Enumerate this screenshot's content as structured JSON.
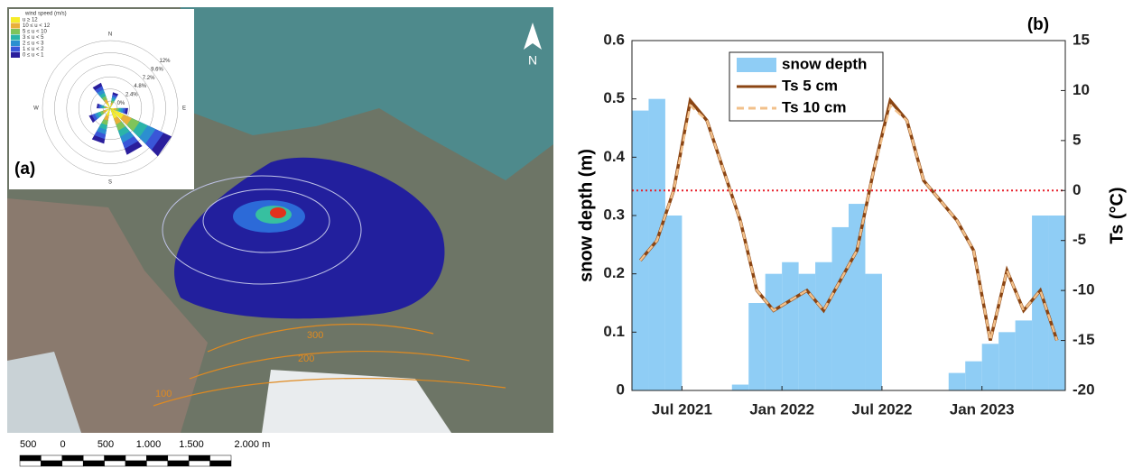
{
  "map_panel": {
    "panel_label": "(a)",
    "north": "N",
    "rose_title": "wind speed (m/s)",
    "rose_classes": [
      {
        "label": "u ≥ 12",
        "color": "#f6ec2a"
      },
      {
        "label": "10 ≤ u < 12",
        "color": "#e9b03a"
      },
      {
        "label": "5 ≤ u < 10",
        "color": "#7fc45a"
      },
      {
        "label": "3 ≤ u < 5",
        "color": "#2bb4a8"
      },
      {
        "label": "2 ≤ u < 3",
        "color": "#2c8fd0"
      },
      {
        "label": "1 ≤ u < 2",
        "color": "#3a56d8"
      },
      {
        "label": "0 ≤ u < 1",
        "color": "#2a1e9c"
      }
    ],
    "rose_rings": [
      "0%",
      "2.4%",
      "4.8%",
      "7.2%",
      "9.6%",
      "12%"
    ],
    "directions": [
      "N",
      "E",
      "S",
      "W"
    ],
    "contour_labels": [
      "300",
      "200",
      "100"
    ],
    "scale_labels": [
      "500",
      "0",
      "500",
      "1.000",
      "1.500",
      "2.000 m"
    ]
  },
  "chart_data": {
    "type": "bar-line",
    "panel_label": "(b)",
    "ylabel": "snow depth (m)",
    "y2label": "Ts (°C)",
    "x": [
      "2021-04",
      "2021-05",
      "2021-06",
      "2021-07",
      "2021-08",
      "2021-09",
      "2021-10",
      "2021-11",
      "2021-12",
      "2022-01",
      "2022-02",
      "2022-03",
      "2022-04",
      "2022-05",
      "2022-06",
      "2022-07",
      "2022-08",
      "2022-09",
      "2022-10",
      "2022-11",
      "2022-12",
      "2023-01",
      "2023-02",
      "2023-03",
      "2023-04",
      "2023-05"
    ],
    "xlim": [
      "2021-04",
      "2023-06"
    ],
    "xticks": [
      {
        "value": "2021-07",
        "label": "Jul 2021"
      },
      {
        "value": "2022-01",
        "label": "Jan 2022"
      },
      {
        "value": "2022-07",
        "label": "Jul 2022"
      },
      {
        "value": "2023-01",
        "label": "Jan 2023"
      }
    ],
    "ylim": [
      0,
      0.6
    ],
    "yticks": [
      0,
      0.1,
      0.2,
      0.3,
      0.4,
      0.5,
      0.6
    ],
    "y2lim": [
      -20,
      15
    ],
    "y2ticks": [
      -20,
      -15,
      -10,
      -5,
      0,
      5,
      10,
      15
    ],
    "hline": {
      "axis": "y2",
      "value": 0,
      "color": "#e8202a"
    },
    "series": [
      {
        "name": "snow depth",
        "kind": "bar",
        "color": "#8fcdf5",
        "values": [
          0.48,
          0.5,
          0.3,
          0,
          0,
          0,
          0.01,
          0.15,
          0.2,
          0.22,
          0.2,
          0.22,
          0.28,
          0.32,
          0.2,
          0,
          0,
          0,
          0,
          0.03,
          0.05,
          0.08,
          0.1,
          0.12,
          0.3,
          0.3
        ]
      },
      {
        "name": "Ts 5 cm",
        "kind": "line",
        "axis": "y2",
        "color": "#8b4513",
        "values": [
          -7,
          -5,
          0,
          9,
          7,
          2,
          -3,
          -10,
          -12,
          -11,
          -10,
          -12,
          -9,
          -6,
          2,
          9,
          7,
          1,
          -1,
          -3,
          -6,
          -15,
          -8,
          -12,
          -10,
          -15
        ]
      },
      {
        "name": "Ts 10 cm",
        "kind": "line",
        "axis": "y2",
        "color": "#f2c08a",
        "dash": true,
        "values": [
          -7,
          -5,
          0,
          8.5,
          7,
          2,
          -3,
          -10,
          -12,
          -11,
          -10,
          -12,
          -9,
          -6,
          2,
          8.5,
          7,
          1,
          -1,
          -3,
          -6,
          -15,
          -8,
          -12,
          -10,
          -15
        ]
      }
    ],
    "legend": "upper-left"
  }
}
